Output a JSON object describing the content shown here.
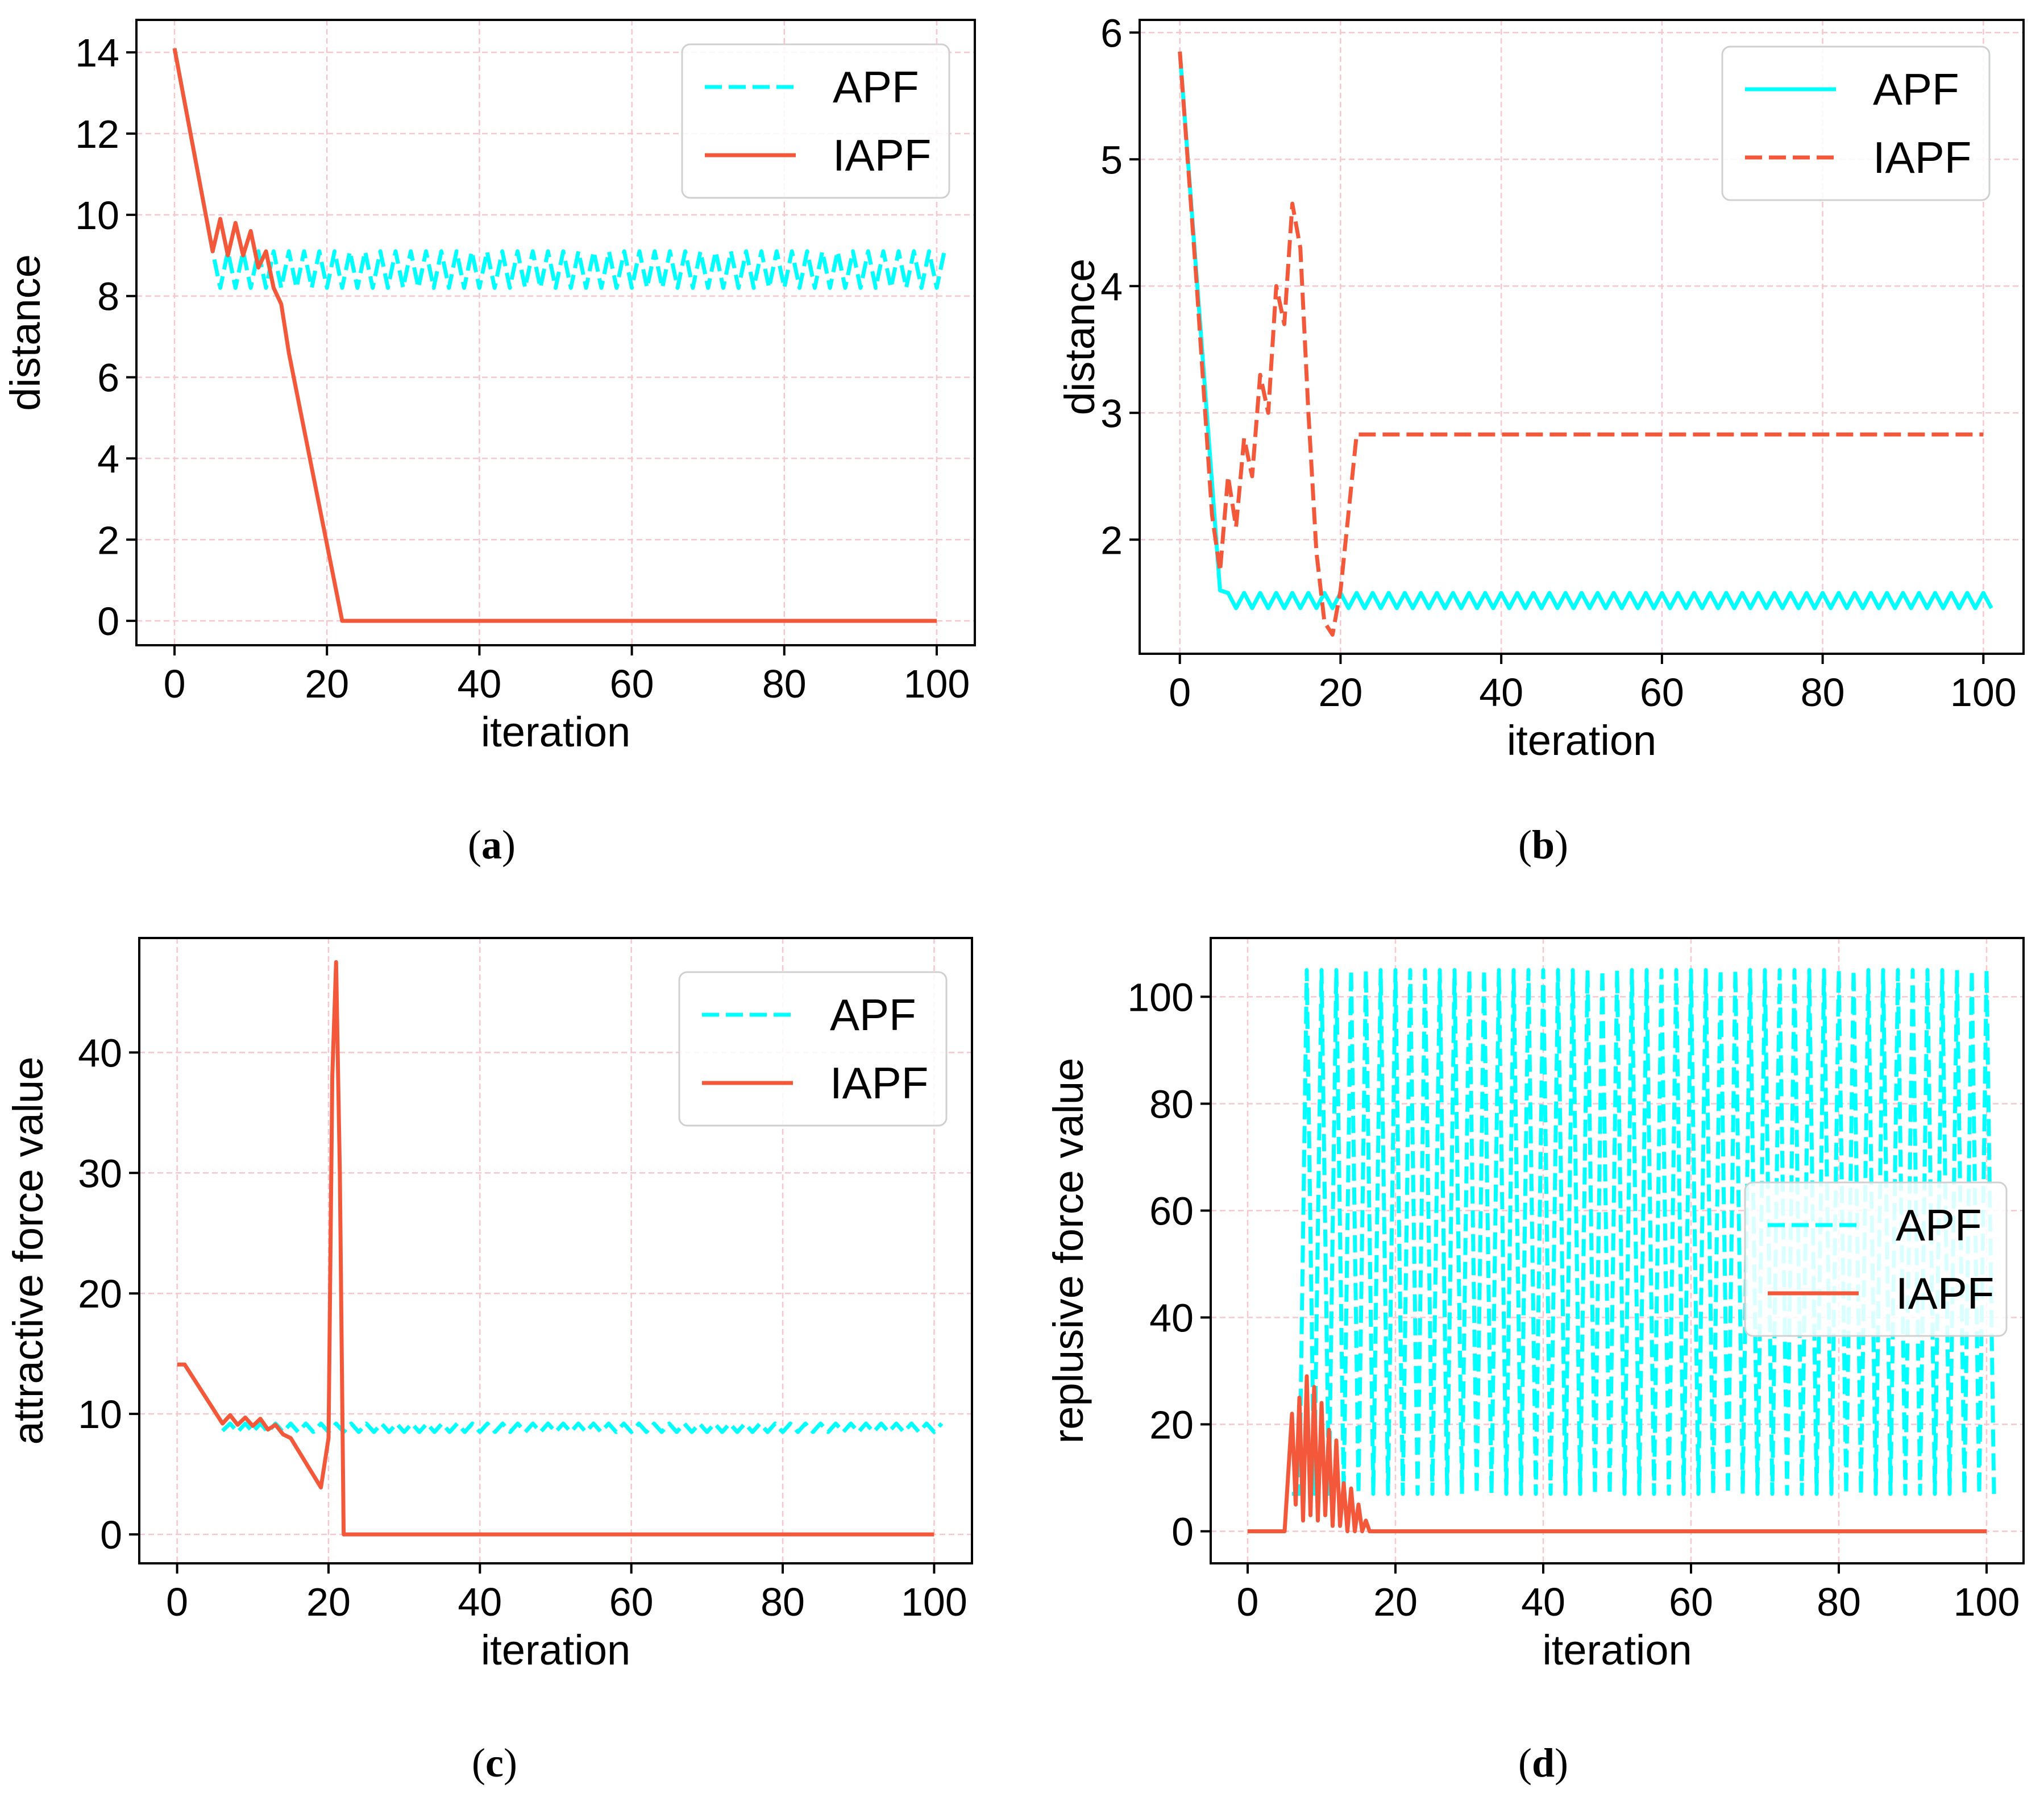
{
  "figure": {
    "captions": [
      {
        "open": "(",
        "letter": "a",
        "close": ")"
      },
      {
        "open": "(",
        "letter": "b",
        "close": ")"
      },
      {
        "open": "(",
        "letter": "c",
        "close": ")"
      },
      {
        "open": "(",
        "letter": "d",
        "close": ")"
      }
    ]
  },
  "colors": {
    "apf": "#00FFFF",
    "iapf": "#F4583A",
    "grid": "#F7C6CE",
    "frame": "#000000"
  },
  "chart_data": [
    {
      "panel": "a",
      "type": "line",
      "xlabel": "iteration",
      "ylabel": "distance",
      "xlim": [
        -5,
        105
      ],
      "ylim": [
        -0.6,
        14.8
      ],
      "xticks": [
        0,
        20,
        40,
        60,
        80,
        100
      ],
      "yticks": [
        0,
        2,
        4,
        6,
        8,
        10,
        12,
        14
      ],
      "grid": true,
      "legend_position": "top-right",
      "series": [
        {
          "name": "APF",
          "style": "dashed",
          "color": "#00FFFF",
          "x": [
            0,
            1,
            2,
            3,
            4,
            5
          ],
          "y": [
            14.1,
            13.1,
            12.1,
            11.1,
            10.1,
            9.1
          ],
          "pattern": {
            "from": 5,
            "to": 101,
            "values": [
              9.1,
              8.2
            ]
          }
        },
        {
          "name": "IAPF",
          "style": "solid",
          "color": "#F4583A",
          "x": [
            0,
            5,
            6,
            7,
            8,
            9,
            10,
            11,
            12,
            13,
            14,
            15,
            22,
            100
          ],
          "y": [
            14.1,
            9.1,
            9.9,
            9.0,
            9.8,
            9.0,
            9.6,
            8.7,
            9.1,
            8.2,
            7.8,
            6.6,
            0,
            0
          ]
        }
      ]
    },
    {
      "panel": "b",
      "type": "line",
      "xlabel": "iteration",
      "ylabel": "distance",
      "xlim": [
        -5,
        105
      ],
      "ylim": [
        1.1,
        6.1
      ],
      "xticks": [
        0,
        20,
        40,
        60,
        80,
        100
      ],
      "yticks": [
        2,
        3,
        4,
        5,
        6
      ],
      "grid": true,
      "legend_position": "top-right",
      "series": [
        {
          "name": "APF",
          "style": "solid",
          "color": "#00FFFF",
          "x": [
            0,
            5
          ],
          "y": [
            5.85,
            1.6
          ],
          "pattern": {
            "from": 5,
            "to": 101,
            "values": [
              1.46,
              1.58
            ]
          }
        },
        {
          "name": "IAPF",
          "style": "dashed",
          "color": "#F4583A",
          "x": [
            0,
            2,
            4,
            5,
            6,
            7,
            8,
            9,
            10,
            11,
            12,
            13,
            14,
            15,
            16,
            17,
            18,
            19,
            20,
            22,
            100
          ],
          "y": [
            5.85,
            4.1,
            2.2,
            1.75,
            2.5,
            2.1,
            2.8,
            2.5,
            3.3,
            3.0,
            4.0,
            3.7,
            4.65,
            4.3,
            3.0,
            1.9,
            1.35,
            1.25,
            1.6,
            2.83,
            2.83
          ]
        }
      ]
    },
    {
      "panel": "c",
      "type": "line",
      "xlabel": "iteration",
      "ylabel": "attractive force value",
      "xlim": [
        -5,
        105
      ],
      "ylim": [
        -2.4,
        49.5
      ],
      "xticks": [
        0,
        20,
        40,
        60,
        80,
        100
      ],
      "yticks": [
        0,
        10,
        20,
        30,
        40
      ],
      "grid": true,
      "legend_position": "top-right",
      "series": [
        {
          "name": "APF",
          "style": "dashed",
          "color": "#00FFFF",
          "x": [
            6
          ],
          "y": [
            8.6
          ],
          "pattern": {
            "from": 6,
            "to": 101,
            "values": [
              8.5,
              9.2
            ]
          }
        },
        {
          "name": "IAPF",
          "style": "solid",
          "color": "#F4583A",
          "x": [
            0,
            1,
            6,
            7,
            8,
            9,
            10,
            11,
            12,
            13,
            14,
            15,
            19,
            20,
            20.5,
            21,
            21.5,
            22,
            100
          ],
          "y": [
            14.1,
            14.1,
            9.2,
            9.9,
            9.1,
            9.7,
            9.0,
            9.6,
            8.7,
            9.1,
            8.3,
            8.0,
            3.9,
            8.0,
            38.0,
            47.5,
            30.0,
            0,
            0
          ]
        }
      ]
    },
    {
      "panel": "d",
      "type": "line",
      "xlabel": "iteration",
      "ylabel": "replusive force value",
      "xlim": [
        -5,
        105
      ],
      "ylim": [
        -6,
        111
      ],
      "xticks": [
        0,
        20,
        40,
        60,
        80,
        100
      ],
      "yticks": [
        0,
        20,
        40,
        60,
        80,
        100
      ],
      "grid": true,
      "legend_position": "center-right",
      "series": [
        {
          "name": "APF",
          "style": "dashed",
          "color": "#00FFFF",
          "x": [
            6
          ],
          "y": [
            7
          ],
          "pattern": {
            "from": 6,
            "to": 101,
            "values": [
              105,
              7
            ]
          }
        },
        {
          "name": "IAPF",
          "style": "solid",
          "color": "#F4583A",
          "x": [
            0,
            5,
            6,
            6.5,
            7,
            7.5,
            8,
            8.5,
            9,
            9.5,
            10,
            10.5,
            11,
            11.5,
            12,
            12.5,
            13,
            13.5,
            14,
            14.5,
            15,
            15.5,
            16,
            16.5,
            17,
            100
          ],
          "y": [
            0,
            0,
            22,
            5,
            25,
            2,
            29,
            3,
            27,
            2,
            24,
            3,
            19,
            1,
            17,
            1,
            9,
            0,
            8,
            0,
            5,
            0,
            2,
            0,
            0,
            0
          ]
        }
      ]
    }
  ]
}
